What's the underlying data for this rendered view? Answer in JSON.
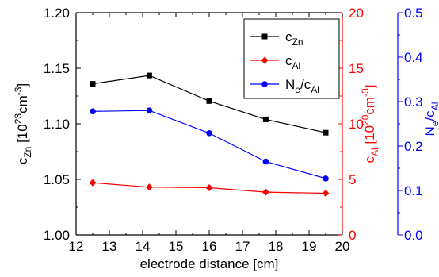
{
  "chart_data": {
    "type": "line",
    "x": [
      12.5,
      14.2,
      16.0,
      17.7,
      19.5
    ],
    "xlabel": "electrode distance [cm]",
    "xlim": [
      12,
      20
    ],
    "xticks": [
      "12",
      "13",
      "14",
      "15",
      "16",
      "17",
      "18",
      "19",
      "20"
    ],
    "axes": {
      "left": {
        "label_main": "c",
        "label_sub": "Zn",
        "label_rest": " [10",
        "label_sup": "23",
        "label_end": "cm",
        "label_sup2": "-3",
        "label_close": "]",
        "ylim": [
          1.0,
          1.2
        ],
        "ticks": [
          "1.00",
          "1.05",
          "1.10",
          "1.15",
          "1.20"
        ],
        "color": "#000000"
      },
      "right1": {
        "label_main": "c",
        "label_sub": "Al",
        "label_rest": " [10",
        "label_sup": "20",
        "label_end": "cm",
        "label_sup2": "-3",
        "label_close": "]",
        "ylim": [
          0,
          20
        ],
        "ticks": [
          "0",
          "5",
          "10",
          "15",
          "20"
        ],
        "color": "#ff0000"
      },
      "right2": {
        "label_main": "N",
        "label_sub": "e",
        "label_rest": "/c",
        "label_sub2": "Al",
        "ylim": [
          0.0,
          0.5
        ],
        "ticks": [
          "0.0",
          "0.1",
          "0.2",
          "0.3",
          "0.4",
          "0.5"
        ],
        "color": "#0000ff"
      }
    },
    "series": [
      {
        "name": "c_Zn",
        "legend_main": "c",
        "legend_sub": "Zn",
        "axis": "left",
        "color": "#000000",
        "marker": "square",
        "values": [
          1.136,
          1.1435,
          1.1205,
          1.104,
          1.092
        ]
      },
      {
        "name": "c_Al",
        "legend_main": "c",
        "legend_sub": "Al",
        "axis": "right1",
        "color": "#ff0000",
        "marker": "diamond",
        "values": [
          4.7,
          4.3,
          4.25,
          3.85,
          3.75
        ]
      },
      {
        "name": "N_e/c_Al",
        "legend_main": "N",
        "legend_sub": "e",
        "legend_rest": "/c",
        "legend_sub2": "Al",
        "axis": "right2",
        "color": "#0000ff",
        "marker": "circle",
        "values": [
          0.278,
          0.28,
          0.229,
          0.165,
          0.127
        ]
      }
    ],
    "legend": "top-right",
    "grid": false
  }
}
